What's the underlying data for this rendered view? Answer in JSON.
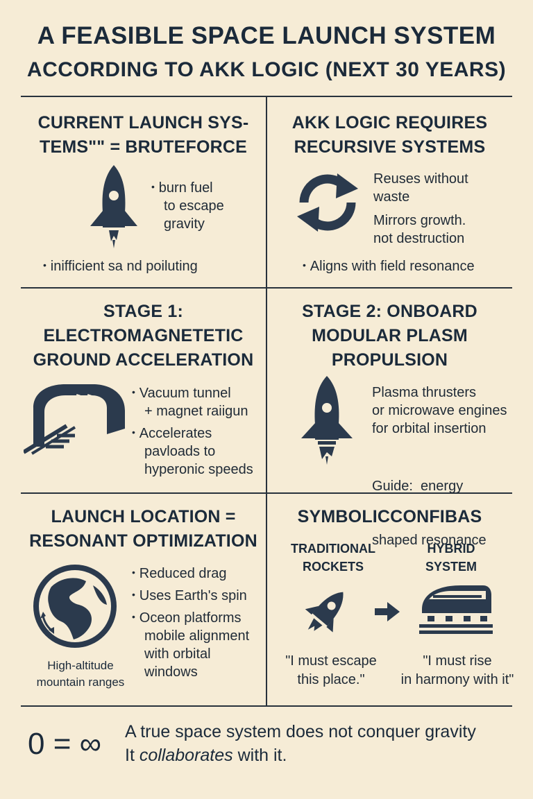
{
  "title": {
    "line1": "A FEASIBLE SPACE LAUNCH SYSTEM",
    "line2": "ACCORDING TO AKK LOGIC (NEXT 30 YEARS)"
  },
  "panels": {
    "current": {
      "heading_line1": "CURRENT LAUNCH SYS-",
      "heading_line2": "TEMS\"\" = BRUTEFORCE",
      "bullet1_line1": "burn fuel",
      "bullet1_line2": "to escape",
      "bullet1_line3": "gravity",
      "bullet2": "inifficient sa nd poiluting"
    },
    "akk": {
      "heading_line1": "AKK LOGIC REQUIRES",
      "heading_line2": "RECURSIVE SYSTEMS",
      "text1_line1": "Reuses without",
      "text1_line2": "waste",
      "text2_line1": "Mirrors growth.",
      "text2_line2": "not destruction",
      "bullet": "Aligns with field resonance"
    },
    "stage1": {
      "heading_line1": "STAGE 1:",
      "heading_line2": "ELECTROMAGNETETIC",
      "heading_line3": "GROUND ACCELERATION",
      "bullet1_line1": "Vacuum tunnel",
      "bullet1_line2": "+ magnet raiigun",
      "bullet2_line1": "Accelerates",
      "bullet2_line2": "pavloads to",
      "bullet2_line3": "hyperonic speeds"
    },
    "stage2": {
      "heading_line1": "STAGE 2: ONBOARD",
      "heading_line2": "MODULAR PLASM",
      "heading_line3": "PROPULSION",
      "text1_line1": "Plasma thrusters",
      "text1_line2": "or microwave engines",
      "text1_line3": "for orbital insertion",
      "text2_line1": "Guide:  energy",
      "text2_line2": "shaped resonance"
    },
    "location": {
      "heading_line1": "LAUNCH LOCATION =",
      "heading_line2": "RESONANT OPTIMIZATION",
      "bullet1": "Reduced drag",
      "bullet2": "Uses Earth's spin",
      "bullet3_line1": "Oceon platforms",
      "bullet3_line2": "mobile alignment",
      "bullet3_line3": "with orbital",
      "bullet3_line4": "windows",
      "caption_line1": "High-altitude",
      "caption_line2": "mountain ranges"
    },
    "symbolic": {
      "heading": "SYMBOLICCONFIBAS",
      "left_label_line1": "TRADITIONAL",
      "left_label_line2": "ROCKETS",
      "right_label_line1": "HYBRID",
      "right_label_line2": "SYSTEM",
      "left_quote_line1": "\"I must escape",
      "left_quote_line2": "this place.\"",
      "right_quote_line1": "\"I must rise",
      "right_quote_line2": "in harmony with it\""
    }
  },
  "footer": {
    "equation": "0 = ∞",
    "line1": "A true space system does not conquer gravity",
    "line2_pre": "It ",
    "line2_em": "collaborates",
    "line2_post": " with it."
  },
  "colors": {
    "background": "#f6ecd6",
    "ink": "#1b2a3a",
    "icon": "#2b3a4d"
  },
  "icons": [
    "rocket-icon",
    "recycle-arrows-icon",
    "tunnel-railgun-icon",
    "plasma-rocket-icon",
    "globe-icon",
    "tilted-rocket-icon",
    "arrow-right-icon",
    "maglev-train-icon"
  ]
}
